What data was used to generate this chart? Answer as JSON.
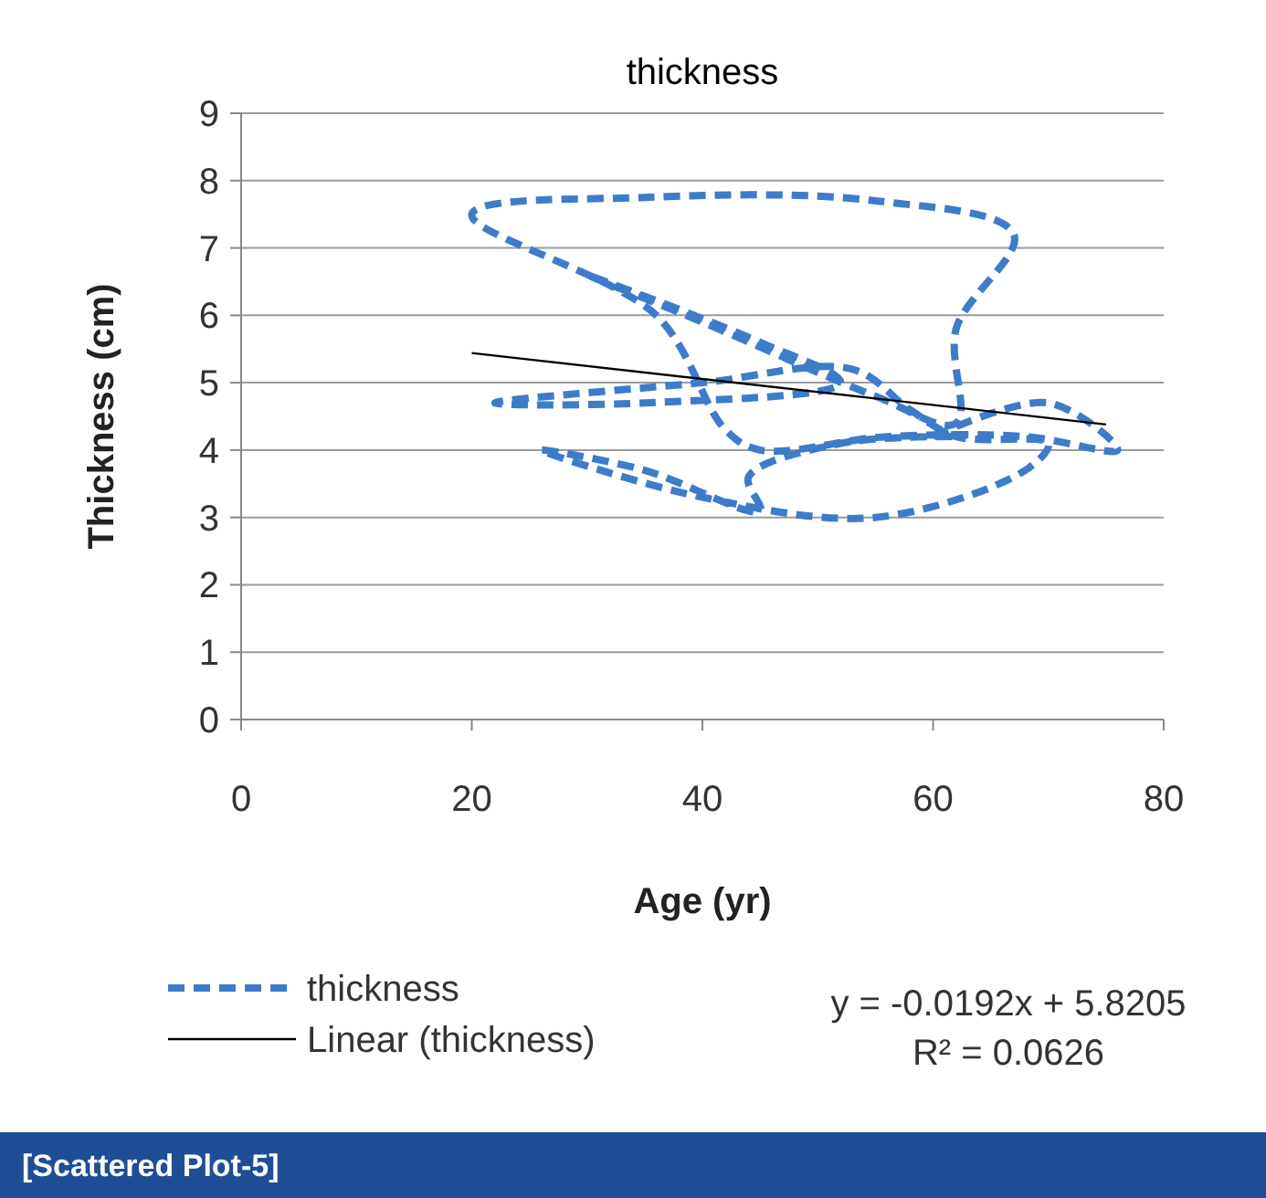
{
  "chart_data": {
    "type": "line",
    "title": "thickness",
    "xlabel": "Age (yr)",
    "ylabel": "Thickness (cm)",
    "xlim": [
      0,
      80
    ],
    "xticks": [
      0,
      20,
      40,
      60,
      80
    ],
    "ylim": [
      0,
      9
    ],
    "yticks": [
      0,
      1,
      2,
      3,
      4,
      5,
      6,
      7,
      8,
      9
    ],
    "grid": "y",
    "legend": "bottom",
    "series": [
      {
        "name": "thickness",
        "color": "#3d7cc9",
        "line_style": "dashed",
        "x": [
          60,
          70,
          76,
          68,
          56,
          45,
          42,
          36,
          20,
          35,
          55,
          67,
          62,
          62,
          55,
          40,
          30,
          45,
          52,
          35,
          22,
          40,
          53,
          58,
          62,
          70,
          68,
          55,
          40,
          26,
          35,
          45,
          44,
          52,
          62
        ],
        "values": [
          4.2,
          4.7,
          4.0,
          4.2,
          4.2,
          4.0,
          4.3,
          6.0,
          7.5,
          7.75,
          7.7,
          7.2,
          5.8,
          4.4,
          4.8,
          5.9,
          6.6,
          5.6,
          5.0,
          4.7,
          4.7,
          5.0,
          5.2,
          4.6,
          4.2,
          4.1,
          3.7,
          3.0,
          3.3,
          4.0,
          3.7,
          3.1,
          3.6,
          4.1,
          4.2
        ]
      },
      {
        "name": "Linear (thickness)",
        "color": "#000000",
        "line_style": "solid",
        "x": [
          20,
          75
        ],
        "values": [
          5.44,
          4.38
        ]
      }
    ],
    "annotations": [
      "y = -0.0192x + 5.8205",
      "R² = 0.0626",
      "[Scattered Plot-5]"
    ]
  }
}
